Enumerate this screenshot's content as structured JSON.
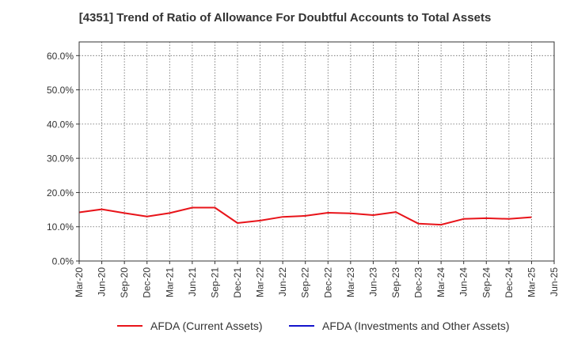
{
  "chart_data": {
    "type": "line",
    "title": "[4351]  Trend of Ratio of Allowance For Doubtful Accounts to Total Assets",
    "xlabel": "",
    "ylabel": "",
    "ylim": [
      0,
      64
    ],
    "y_ticks": [
      "0.0%",
      "10.0%",
      "20.0%",
      "30.0%",
      "40.0%",
      "50.0%",
      "60.0%"
    ],
    "y_tick_values": [
      0,
      10,
      20,
      30,
      40,
      50,
      60
    ],
    "x_ticks": [
      "Mar-20",
      "Jun-20",
      "Sep-20",
      "Dec-20",
      "Mar-21",
      "Jun-21",
      "Sep-21",
      "Dec-21",
      "Mar-22",
      "Jun-22",
      "Sep-22",
      "Dec-22",
      "Mar-23",
      "Jun-23",
      "Sep-23",
      "Dec-23",
      "Mar-24",
      "Jun-24",
      "Sep-24",
      "Dec-24",
      "Mar-25",
      "Jun-25"
    ],
    "grid": true,
    "legend_position": "bottom",
    "series": [
      {
        "name": "AFDA (Current Assets)",
        "color": "#e8141a",
        "values": [
          14.2,
          15.1,
          14.0,
          13.0,
          14.0,
          15.6,
          15.6,
          11.1,
          11.8,
          12.9,
          13.2,
          14.1,
          13.9,
          13.4,
          14.3,
          10.9,
          10.6,
          12.3,
          12.5,
          12.3,
          12.8,
          null
        ]
      },
      {
        "name": "AFDA (Investments and Other Assets)",
        "color": "#1414cc",
        "values": [
          null,
          null,
          null,
          null,
          null,
          null,
          null,
          null,
          null,
          null,
          null,
          null,
          null,
          null,
          null,
          null,
          null,
          null,
          null,
          null,
          null,
          null
        ]
      }
    ]
  }
}
